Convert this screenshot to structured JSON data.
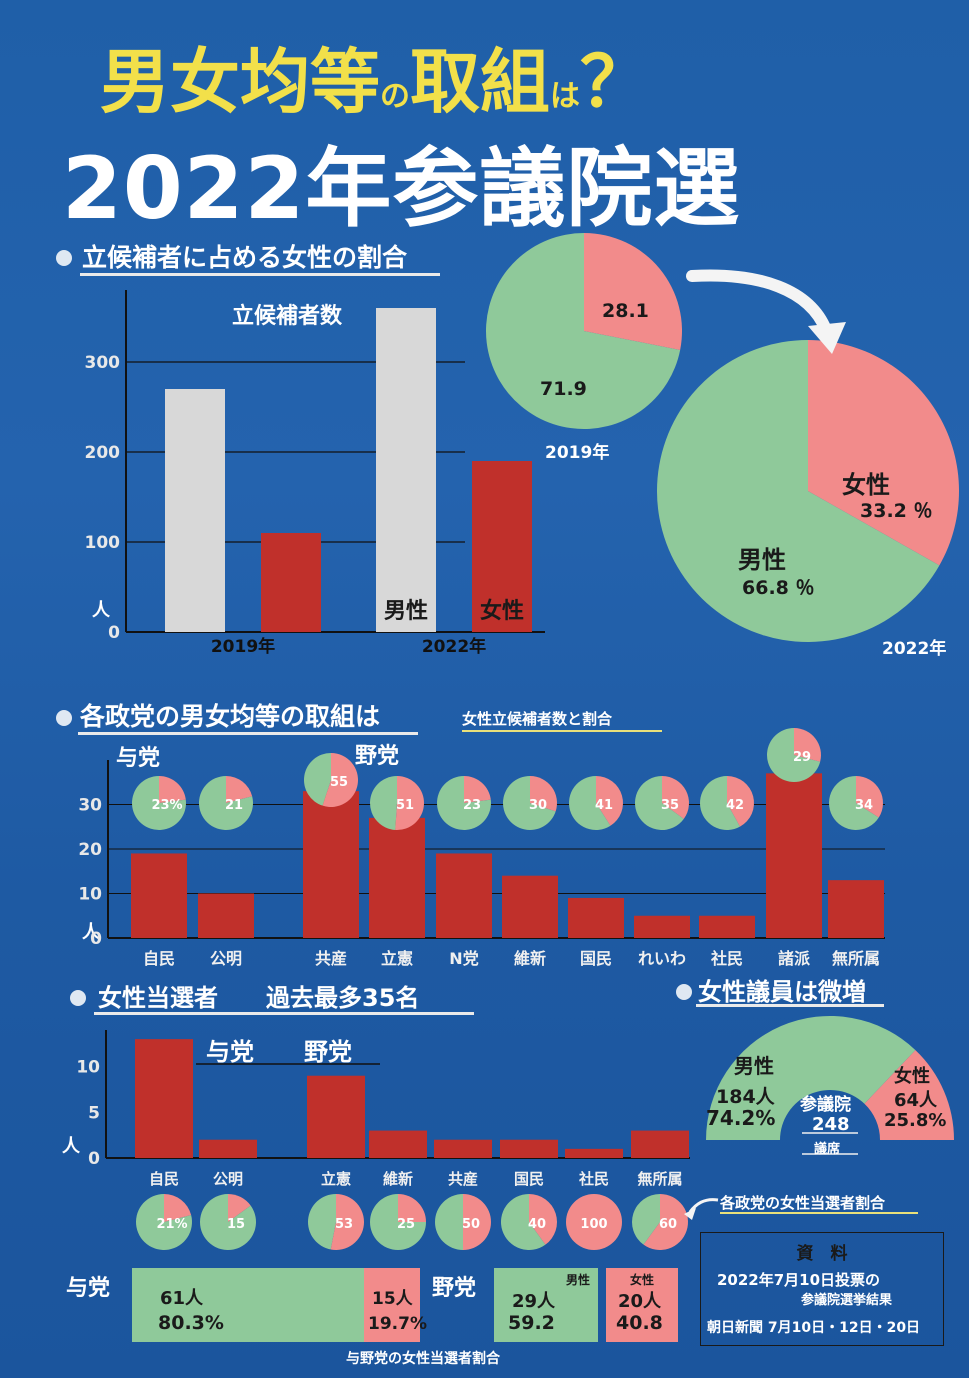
{
  "header": {
    "title_a": "男女均等",
    "title_no": "の",
    "title_b": "取組",
    "title_ha": "は",
    "title_q": "？",
    "subtitle": "2022年参議院選"
  },
  "sections": {
    "s1": "立候補者に占める女性の割合",
    "s2": "各政党の男女均等の取組は",
    "s2_note": "女性立候補者数と割合",
    "s3": "女性当選者　　過去最多35名",
    "s4": "女性議員は微増"
  },
  "colors": {
    "female": "#f28b8b",
    "male": "#8fc99a",
    "bar_red": "#c0302b",
    "bar_gray": "#d8d8d8",
    "bg": "#2463ae"
  },
  "chart_data": [
    {
      "type": "bar",
      "id": "candidates",
      "title": "立候補者数",
      "ylabel": "人",
      "categories": [
        "2019年",
        "2022年"
      ],
      "series": [
        {
          "name": "男性",
          "values": [
            270,
            360
          ]
        },
        {
          "name": "女性",
          "values": [
            110,
            190
          ]
        }
      ],
      "ylim": [
        0,
        380
      ],
      "yticks": [
        0,
        100,
        200,
        300
      ],
      "tick_labels": [
        "0",
        "100",
        "200",
        "300"
      ]
    },
    {
      "type": "pie",
      "id": "pie2019",
      "caption": "2019年",
      "labels": [
        "",
        ""
      ],
      "values": [
        28.1,
        71.9
      ],
      "value_labels": [
        "28.1",
        "71.9"
      ]
    },
    {
      "type": "pie",
      "id": "pie2022",
      "caption": "2022年",
      "labels": [
        "女性",
        "男性"
      ],
      "values": [
        33.2,
        66.8
      ],
      "value_labels": [
        "33.2 ％",
        "66.8 ％"
      ]
    },
    {
      "type": "bar",
      "id": "party_candidates",
      "ylabel": "人",
      "group_labels": [
        "与党",
        "野党"
      ],
      "categories": [
        "自民",
        "公明",
        "共産",
        "立憲",
        "N党",
        "維新",
        "国民",
        "れいわ",
        "社民",
        "諸派",
        "無所属"
      ],
      "values": [
        19,
        10,
        33,
        27,
        19,
        14,
        9,
        5,
        5,
        37,
        13
      ],
      "female_pct": [
        23,
        21,
        55,
        51,
        23,
        30,
        41,
        35,
        42,
        29,
        34
      ],
      "pct_labels": [
        "23%",
        "21",
        "55",
        "51",
        "23",
        "30",
        "41",
        "35",
        "42",
        "29",
        "34"
      ],
      "ylim": [
        0,
        40
      ],
      "yticks": [
        0,
        10,
        20,
        30
      ],
      "tick_labels": [
        "0",
        "10",
        "20",
        "30"
      ]
    },
    {
      "type": "bar",
      "id": "female_winners",
      "ylabel": "人",
      "group_labels": [
        "与党",
        "野党"
      ],
      "categories": [
        "自民",
        "公明",
        "立憲",
        "維新",
        "共産",
        "国民",
        "社民",
        "無所属"
      ],
      "values": [
        13,
        2,
        9,
        3,
        2,
        2,
        1,
        3
      ],
      "female_pct": [
        21,
        15,
        53,
        25,
        50,
        40,
        100,
        60
      ],
      "pct_labels": [
        "21%",
        "15",
        "53",
        "25",
        "50",
        "40",
        "100",
        "60"
      ],
      "ylim": [
        0,
        14
      ],
      "yticks": [
        0,
        5,
        10
      ],
      "tick_labels": [
        "0",
        "5",
        "10"
      ],
      "pct_note": "各政党の女性当選者割合"
    },
    {
      "type": "pie",
      "id": "house",
      "center_label": "参議院",
      "center_count": "248",
      "center_unit": "議席",
      "labels": [
        "男性",
        "女性"
      ],
      "values": [
        184,
        64
      ],
      "counts": [
        "184人",
        "64人"
      ],
      "pcts": [
        "74.2%",
        "25.8%"
      ]
    },
    {
      "type": "bar",
      "id": "coalition_split",
      "groups": [
        {
          "name": "与党",
          "male_count": "61人",
          "male_pct": "80.3%",
          "female_count": "15人",
          "female_pct": "19.7%",
          "male_value": 80.3,
          "female_value": 19.7
        },
        {
          "name": "野党",
          "male_label": "男性",
          "female_label": "女性",
          "male_count": "29人",
          "male_pct": "59.2",
          "female_count": "20人",
          "female_pct": "40.8",
          "male_value": 59.2,
          "female_value": 40.8
        }
      ],
      "caption": "与野党の女性当選者割合"
    }
  ],
  "source": {
    "title": "資　料",
    "line1": "2022年7月10日投票の",
    "line2": "参議院選挙結果",
    "line3": "朝日新聞 7月10日・12日・20日"
  }
}
